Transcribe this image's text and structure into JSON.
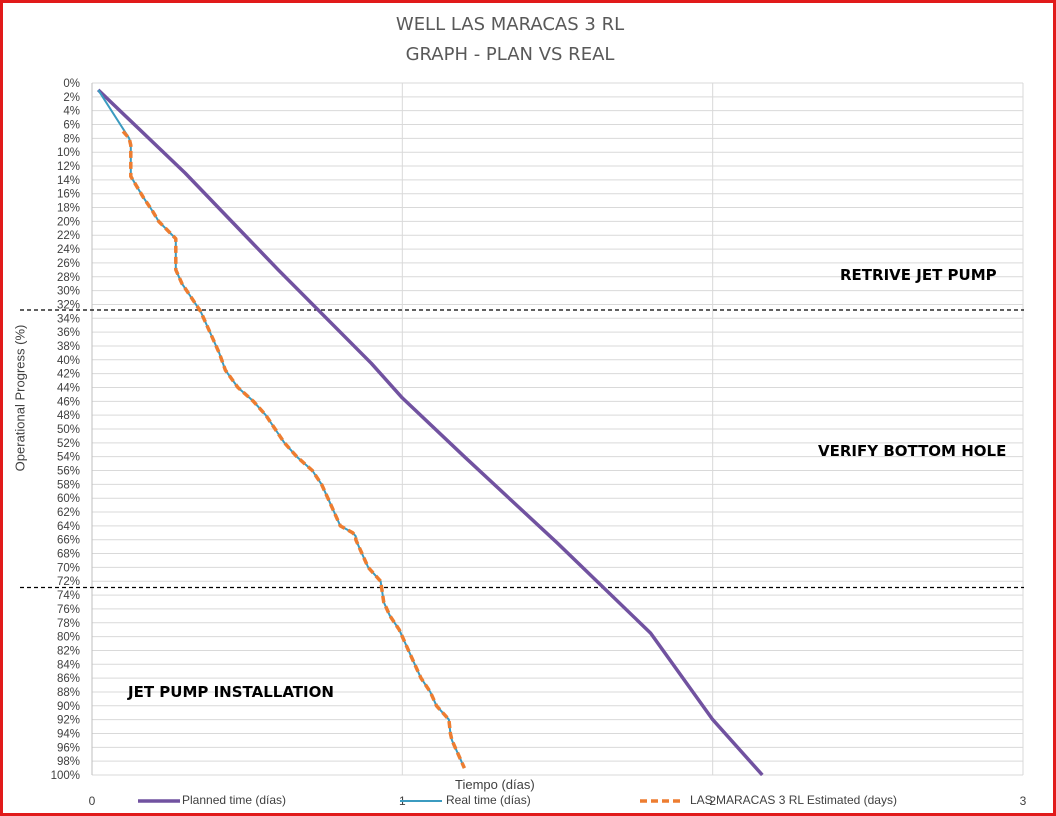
{
  "chart_data": {
    "type": "line",
    "title": [
      "WELL LAS MARACAS 3 RL",
      "GRAPH  - PLAN VS REAL"
    ],
    "xlabel": "Tiempo (días)",
    "ylabel": "Operational Progress (%)",
    "xlim": [
      0,
      3
    ],
    "ylim": [
      0,
      100
    ],
    "y_inverted": true,
    "x_ticks": [
      "0",
      "1",
      "2",
      "3"
    ],
    "y_ticks": [
      "0%",
      "2%",
      "4%",
      "6%",
      "8%",
      "10%",
      "12%",
      "14%",
      "16%",
      "18%",
      "20%",
      "22%",
      "24%",
      "26%",
      "28%",
      "30%",
      "32%",
      "34%",
      "36%",
      "38%",
      "40%",
      "42%",
      "44%",
      "46%",
      "48%",
      "50%",
      "52%",
      "54%",
      "56%",
      "58%",
      "60%",
      "62%",
      "64%",
      "66%",
      "68%",
      "70%",
      "72%",
      "74%",
      "76%",
      "78%",
      "80%",
      "82%",
      "84%",
      "86%",
      "88%",
      "90%",
      "92%",
      "94%",
      "96%",
      "98%",
      "100%"
    ],
    "grid": true,
    "legend_position": "bottom",
    "annotations": [
      "RETRIVE JET PUMP",
      "VERIFY BOTTOM HOLE",
      "JET PUMP INSTALLATION"
    ],
    "phase_boundaries": [
      32.8,
      72.9
    ],
    "series": [
      {
        "name": "Planned time (días)",
        "color": "#7152a0",
        "style": "solid",
        "x": [
          0.02,
          0.3,
          0.6,
          0.9,
          1.0,
          1.2,
          1.5,
          1.8,
          2.0,
          2.16
        ],
        "y": [
          1,
          13,
          27,
          40.5,
          45.5,
          54,
          66.5,
          79.5,
          92,
          100
        ]
      },
      {
        "name": "Real time (días)",
        "color": "#3b9bc0",
        "style": "solid",
        "x": [
          0.02,
          0.12,
          0.125,
          0.125,
          0.145,
          0.165,
          0.195,
          0.215,
          0.27,
          0.27,
          0.29,
          0.32,
          0.35,
          0.38,
          0.41,
          0.43,
          0.47,
          0.52,
          0.56,
          0.59,
          0.62,
          0.66,
          0.71,
          0.74,
          0.76,
          0.78,
          0.8,
          0.82,
          0.84,
          0.85,
          0.85,
          0.87,
          0.89,
          0.93,
          0.935,
          0.94,
          0.96,
          0.99,
          1.01,
          1.03,
          1.06,
          1.09,
          1.11,
          1.15,
          1.155,
          1.16,
          1.2
        ],
        "y": [
          1,
          8,
          9,
          13.5,
          15,
          16.5,
          18.5,
          20,
          22.5,
          27,
          29,
          31,
          33,
          36,
          39,
          41.5,
          44,
          46,
          48,
          50,
          52,
          54,
          56,
          58,
          60,
          62,
          64,
          64.5,
          65,
          65.5,
          66,
          68,
          70,
          72,
          73.5,
          75,
          77,
          79,
          81,
          83,
          86,
          88,
          90,
          92,
          94,
          95,
          99
        ]
      },
      {
        "name": "LAS MARACAS 3 RL Estimated (days)",
        "color": "#ed7d31",
        "style": "dashed",
        "x": [
          0.1,
          0.12,
          0.125,
          0.125,
          0.145,
          0.165,
          0.195,
          0.215,
          0.27,
          0.27,
          0.29,
          0.32,
          0.35,
          0.38,
          0.41,
          0.43,
          0.47,
          0.52,
          0.56,
          0.59,
          0.62,
          0.66,
          0.71,
          0.74,
          0.76,
          0.78,
          0.8,
          0.82,
          0.84,
          0.85,
          0.85,
          0.87,
          0.89,
          0.93,
          0.935,
          0.94,
          0.96,
          0.99,
          1.01,
          1.03,
          1.06,
          1.09,
          1.11,
          1.15,
          1.155,
          1.16,
          1.2
        ],
        "y": [
          7,
          8,
          9,
          13.5,
          15,
          16.5,
          18.5,
          20,
          22.5,
          27,
          29,
          31,
          33,
          36,
          39,
          41.5,
          44,
          46,
          48,
          50,
          52,
          54,
          56,
          58,
          60,
          62,
          64,
          64.5,
          65,
          65.5,
          66,
          68,
          70,
          72,
          73.5,
          75,
          77,
          79,
          81,
          83,
          86,
          88,
          90,
          92,
          94,
          95,
          99
        ]
      }
    ]
  }
}
